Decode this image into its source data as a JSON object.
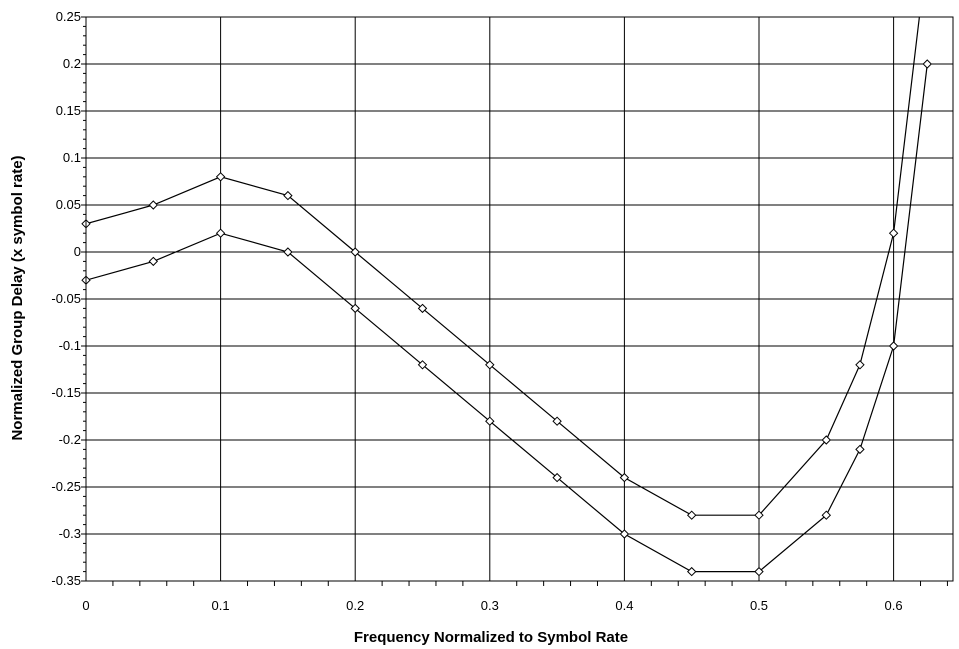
{
  "chart_data": {
    "type": "line",
    "title": "",
    "xlabel": "Frequency Normalized to Symbol Rate",
    "ylabel": "Normalized Group Delay (x symbol rate)",
    "xlim": [
      0,
      0.65
    ],
    "ylim": [
      -0.35,
      0.25
    ],
    "x_ticks": [
      0,
      0.1,
      0.2,
      0.3,
      0.4,
      0.5,
      0.6
    ],
    "x_tick_labels": [
      "0",
      "0.1",
      "0.2",
      "0.3",
      "0.4",
      "0.5",
      "0.6"
    ],
    "y_ticks": [
      0.25,
      0.2,
      0.15,
      0.1,
      0.05,
      0,
      -0.05,
      -0.1,
      -0.15,
      -0.2,
      -0.25,
      -0.3,
      -0.35
    ],
    "y_tick_labels": [
      "0.25",
      "0.2",
      "0.15",
      "0.1",
      "0.05",
      "0",
      "-0.05",
      "-0.1",
      "-0.15",
      "-0.2",
      "-0.25",
      "-0.3",
      "-0.35"
    ],
    "grid": true,
    "legend": "none",
    "line_color": "#000000",
    "marker": "diamond",
    "series": [
      {
        "x": [
          0,
          0.05,
          0.1,
          0.15,
          0.2,
          0.25,
          0.3,
          0.35,
          0.4,
          0.45,
          0.5,
          0.55,
          0.575,
          0.6,
          0.625
        ],
        "y": [
          -0.03,
          -0.01,
          0.02,
          0,
          -0.06,
          -0.12,
          -0.18,
          -0.24,
          -0.3,
          -0.34,
          -0.34,
          -0.28,
          -0.21,
          -0.1,
          0.2
        ]
      },
      {
        "x": [
          0,
          0.05,
          0.1,
          0.15,
          0.2,
          0.25,
          0.3,
          0.35,
          0.4,
          0.45,
          0.5,
          0.55,
          0.575,
          0.6,
          0.62
        ],
        "y": [
          0.03,
          0.05,
          0.08,
          0.06,
          0,
          -0.06,
          -0.12,
          -0.18,
          -0.24,
          -0.28,
          -0.28,
          -0.2,
          -0.12,
          0.02,
          0.26
        ],
        "marker_count": 14
      }
    ]
  }
}
